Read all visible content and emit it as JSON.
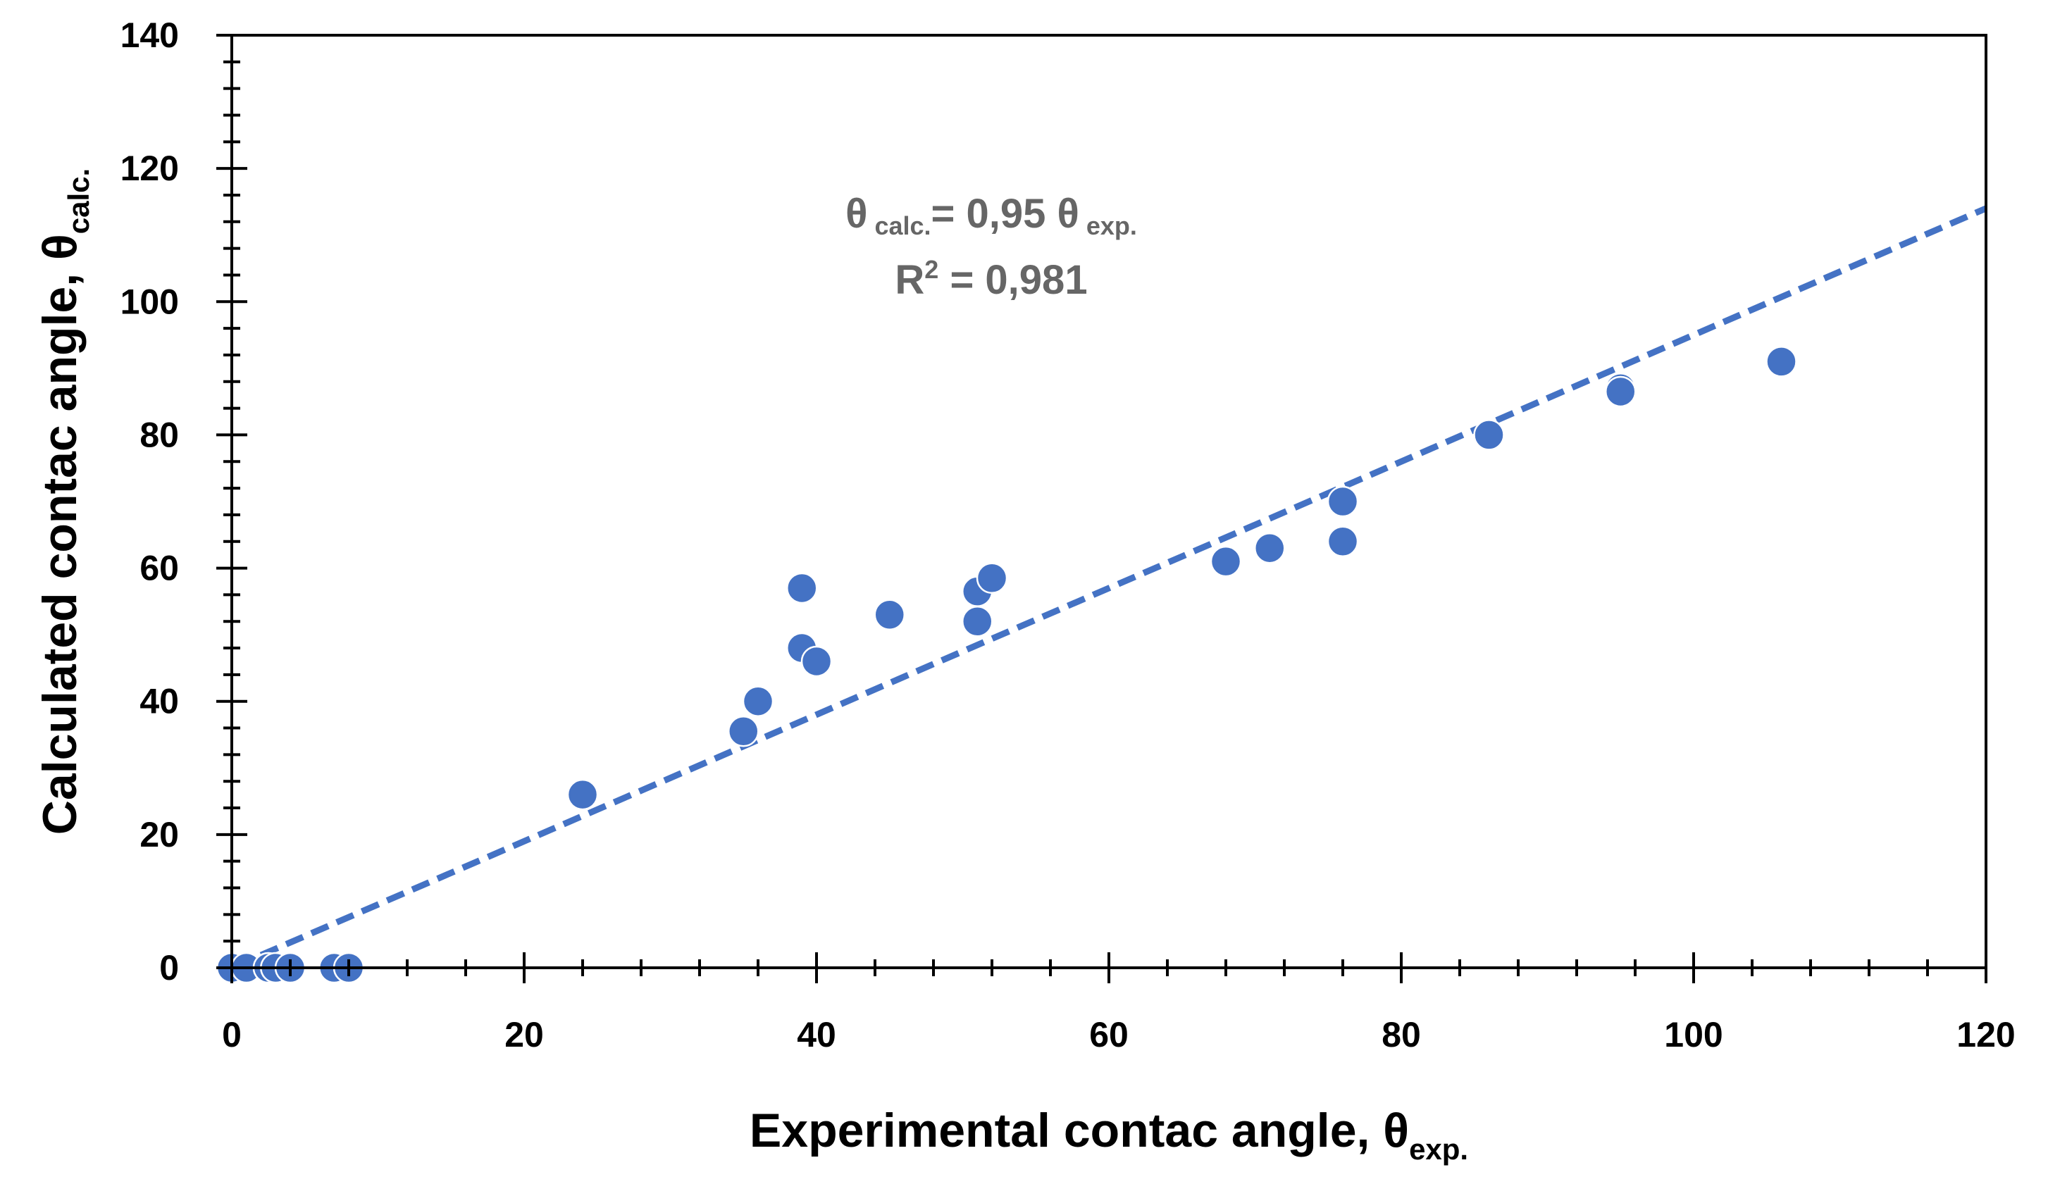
{
  "chart_data": {
    "type": "scatter",
    "title": "",
    "xlabel": "Experimental contac angle, θ",
    "xlabel_subscript": "exp.",
    "ylabel": "Calculated contac angle, θ",
    "ylabel_subscript": "calc.",
    "xlim": [
      0,
      120
    ],
    "ylim": [
      0,
      140
    ],
    "xticks": [
      0,
      20,
      40,
      60,
      80,
      100,
      120
    ],
    "yticks": [
      0,
      20,
      40,
      60,
      80,
      100,
      120,
      140
    ],
    "grid": false,
    "legend": "none",
    "marker_color": "#4472C4",
    "trendline_color": "#4472C4",
    "series": [
      {
        "x": [
          0,
          1,
          2.5,
          3,
          4,
          7,
          8,
          24,
          35,
          36,
          39,
          39,
          40,
          45,
          51,
          51,
          52,
          68,
          71,
          76,
          76,
          86,
          95,
          95,
          106
        ],
        "y": [
          0,
          0,
          0,
          0,
          0,
          0,
          0,
          26,
          35.5,
          40,
          57,
          48,
          46,
          53,
          56.5,
          52,
          58.5,
          61,
          63,
          70,
          64,
          80,
          87,
          86.5,
          91
        ]
      }
    ],
    "trendline": {
      "slope": 0.95,
      "style": "dashed",
      "x_start": 2,
      "x_end": 120
    },
    "annotation": {
      "line1_theta1": "θ",
      "line1_sub1": "calc.",
      "line1_mid": "= 0,95 θ",
      "line1_sub2": "exp.",
      "line2_base": "R",
      "line2_sup": "2",
      "line2_rest": " = 0,981"
    }
  }
}
